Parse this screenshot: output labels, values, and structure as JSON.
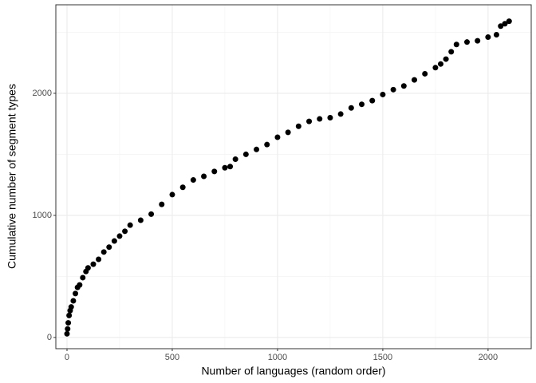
{
  "chart_data": {
    "type": "scatter",
    "x_label": "Number of languages (random order)",
    "y_label": "Cumulative number of segment types",
    "color": "#000000",
    "xlim": [
      -53,
      2205
    ],
    "ylim": [
      -92,
      2725
    ],
    "xticks": [
      0,
      500,
      1000,
      1500,
      2000
    ],
    "yticks": [
      0,
      1000,
      2000
    ],
    "xminor": [
      250,
      750,
      1250,
      1750
    ],
    "yminor": [
      500,
      1500,
      2500
    ],
    "grid": true,
    "x": [
      0,
      3,
      6,
      10,
      15,
      20,
      30,
      40,
      50,
      60,
      75,
      90,
      100,
      125,
      150,
      175,
      200,
      225,
      250,
      275,
      300,
      350,
      400,
      450,
      500,
      550,
      600,
      650,
      700,
      750,
      775,
      800,
      850,
      900,
      950,
      1000,
      1050,
      1100,
      1150,
      1200,
      1250,
      1300,
      1350,
      1400,
      1450,
      1500,
      1550,
      1600,
      1650,
      1700,
      1750,
      1775,
      1800,
      1825,
      1850,
      1900,
      1950,
      2000,
      2040,
      2060,
      2080,
      2100
    ],
    "values": [
      30,
      70,
      120,
      180,
      220,
      250,
      300,
      360,
      410,
      430,
      490,
      540,
      570,
      600,
      640,
      700,
      740,
      790,
      830,
      870,
      920,
      960,
      1010,
      1090,
      1170,
      1230,
      1290,
      1320,
      1360,
      1390,
      1400,
      1460,
      1500,
      1540,
      1580,
      1640,
      1680,
      1730,
      1770,
      1790,
      1800,
      1830,
      1880,
      1910,
      1940,
      1990,
      2030,
      2060,
      2110,
      2160,
      2210,
      2240,
      2280,
      2340,
      2400,
      2420,
      2430,
      2460,
      2480,
      2550,
      2570,
      2590
    ]
  }
}
